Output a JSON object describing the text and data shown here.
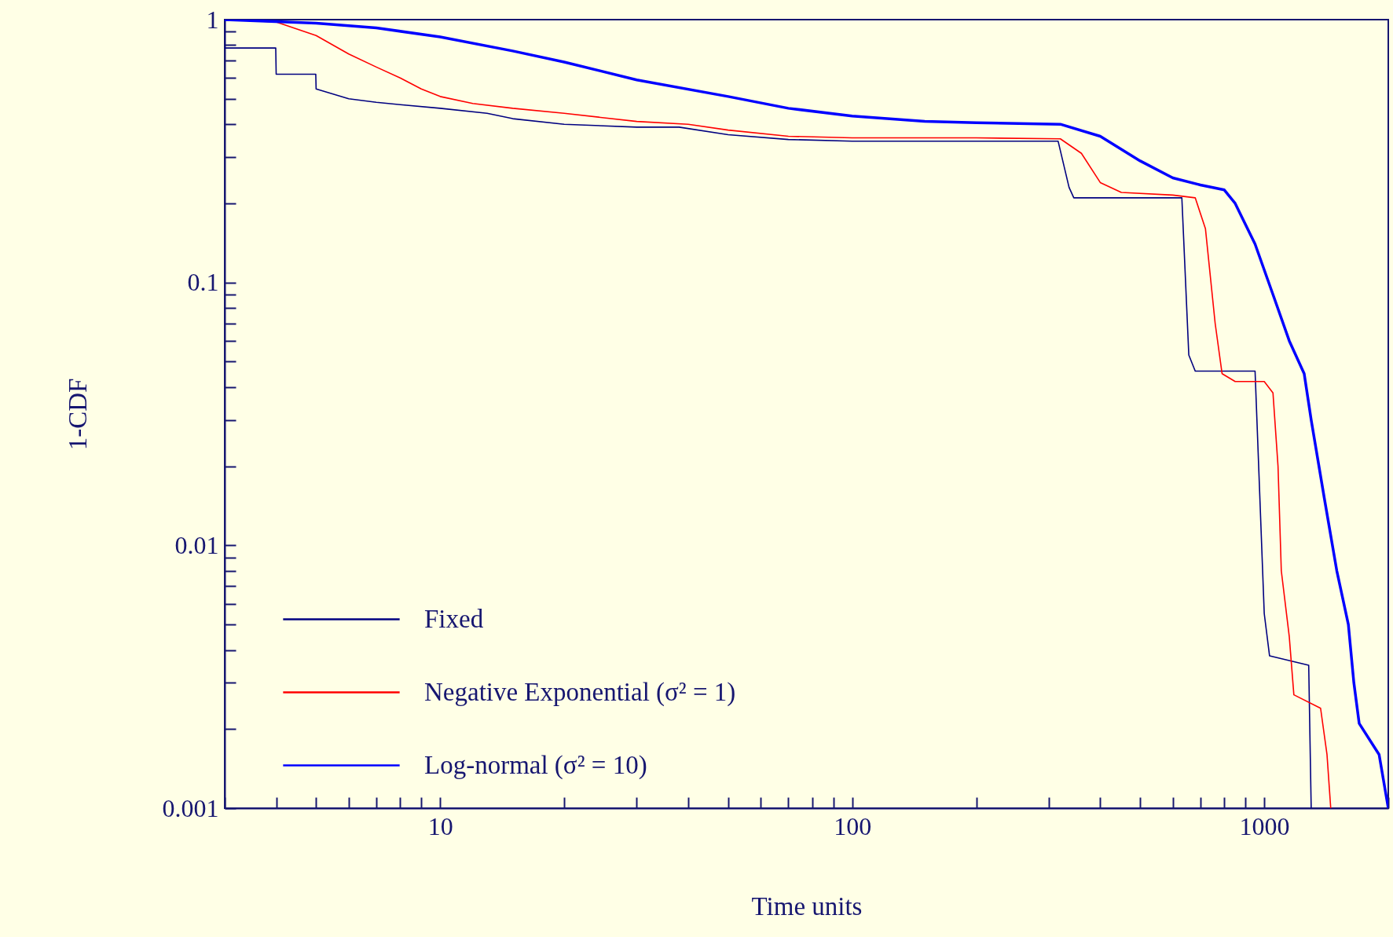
{
  "chart_data": {
    "type": "line",
    "xlabel": "Time units",
    "ylabel": "1-CDF",
    "log": "xy",
    "xlim": [
      3,
      2000
    ],
    "ylim": [
      0.001,
      1
    ],
    "xticks": [
      {
        "value": 3,
        "label": null
      },
      {
        "value": 4,
        "label": null
      },
      {
        "value": 5,
        "label": null
      },
      {
        "value": 6,
        "label": null
      },
      {
        "value": 7,
        "label": null
      },
      {
        "value": 8,
        "label": null
      },
      {
        "value": 9,
        "label": null
      },
      10,
      {
        "value": 20,
        "label": null
      },
      {
        "value": 30,
        "label": null
      },
      {
        "value": 40,
        "label": null
      },
      {
        "value": 50,
        "label": null
      },
      {
        "value": 60,
        "label": null
      },
      {
        "value": 70,
        "label": null
      },
      {
        "value": 80,
        "label": null
      },
      {
        "value": 90,
        "label": null
      },
      100,
      {
        "value": 200,
        "label": null
      },
      {
        "value": 300,
        "label": null
      },
      {
        "value": 400,
        "label": null
      },
      {
        "value": 500,
        "label": null
      },
      {
        "value": 600,
        "label": null
      },
      {
        "value": 700,
        "label": null
      },
      {
        "value": 800,
        "label": null
      },
      {
        "value": 900,
        "label": null
      },
      1000,
      {
        "value": 2000,
        "label": null
      }
    ],
    "yticks": [
      0.001,
      {
        "value": 0.002,
        "label": null
      },
      {
        "value": 0.003,
        "label": null
      },
      {
        "value": 0.004,
        "label": null
      },
      {
        "value": 0.005,
        "label": null
      },
      {
        "value": 0.006,
        "label": null
      },
      {
        "value": 0.007,
        "label": null
      },
      {
        "value": 0.008,
        "label": null
      },
      {
        "value": 0.009,
        "label": null
      },
      0.01,
      {
        "value": 0.02,
        "label": null
      },
      {
        "value": 0.03,
        "label": null
      },
      {
        "value": 0.04,
        "label": null
      },
      {
        "value": 0.05,
        "label": null
      },
      {
        "value": 0.06,
        "label": null
      },
      {
        "value": 0.07,
        "label": null
      },
      {
        "value": 0.08,
        "label": null
      },
      {
        "value": 0.09,
        "label": null
      },
      0.1,
      {
        "value": 0.2,
        "label": null
      },
      {
        "value": 0.3,
        "label": null
      },
      {
        "value": 0.4,
        "label": null
      },
      {
        "value": 0.5,
        "label": null
      },
      {
        "value": 0.6,
        "label": null
      },
      {
        "value": 0.7,
        "label": null
      },
      {
        "value": 0.8,
        "label": null
      },
      {
        "value": 0.9,
        "label": null
      },
      1
    ],
    "grid": false,
    "legend": "bottom left",
    "marker": "none",
    "line_style": "solid",
    "series": [
      {
        "name": "Fixed",
        "color": "#000080",
        "x": [
          3,
          3,
          3.99,
          4,
          4.99,
          5,
          6,
          7,
          8,
          10,
          13,
          15,
          20,
          30,
          38,
          50,
          70,
          100,
          200,
          316,
          336,
          345,
          631,
          656,
          680,
          950,
          1000,
          1030,
          1282,
          1300
        ],
        "values": [
          1,
          0.78,
          0.78,
          0.62,
          0.62,
          0.545,
          0.5,
          0.485,
          0.475,
          0.46,
          0.44,
          0.42,
          0.4,
          0.39,
          0.39,
          0.365,
          0.35,
          0.345,
          0.345,
          0.345,
          0.23,
          0.21,
          0.21,
          0.053,
          0.046,
          0.046,
          0.0055,
          0.0038,
          0.0035,
          0.001
        ]
      },
      {
        "name": "Negative Exponential (σ² = 1)",
        "color": "#ff0000",
        "x": [
          3,
          4,
          5,
          6,
          7,
          8,
          9,
          10,
          12,
          15,
          20,
          30,
          40,
          50,
          70,
          100,
          200,
          320,
          360,
          400,
          450,
          600,
          680,
          720,
          760,
          790,
          850,
          1000,
          1050,
          1080,
          1100,
          1150,
          1180,
          1370,
          1420,
          1450
        ],
        "values": [
          1,
          0.98,
          0.87,
          0.74,
          0.66,
          0.6,
          0.545,
          0.51,
          0.48,
          0.46,
          0.44,
          0.41,
          0.4,
          0.38,
          0.36,
          0.355,
          0.355,
          0.352,
          0.31,
          0.24,
          0.22,
          0.215,
          0.21,
          0.16,
          0.07,
          0.045,
          0.042,
          0.042,
          0.038,
          0.02,
          0.008,
          0.0045,
          0.0027,
          0.0024,
          0.0016,
          0.001
        ]
      },
      {
        "name": "Log-normal (σ² = 10)",
        "color": "#0000ff",
        "x": [
          3,
          5,
          7,
          10,
          15,
          20,
          30,
          50,
          70,
          100,
          150,
          200,
          320,
          400,
          500,
          600,
          700,
          800,
          850,
          950,
          1050,
          1150,
          1250,
          1300,
          1400,
          1500,
          1600,
          1650,
          1700,
          1900,
          2000
        ],
        "values": [
          1,
          0.97,
          0.93,
          0.86,
          0.76,
          0.69,
          0.59,
          0.51,
          0.46,
          0.43,
          0.41,
          0.405,
          0.4,
          0.36,
          0.29,
          0.25,
          0.235,
          0.225,
          0.2,
          0.14,
          0.09,
          0.06,
          0.045,
          0.03,
          0.015,
          0.008,
          0.005,
          0.003,
          0.0021,
          0.0016,
          0.001
        ]
      }
    ]
  }
}
